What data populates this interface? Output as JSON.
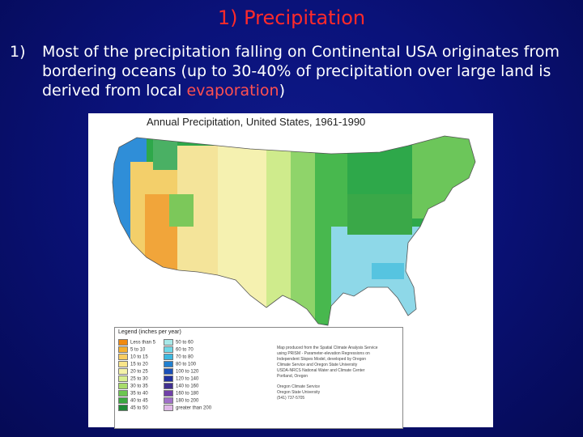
{
  "slide": {
    "title": "1) Precipitation",
    "bullet_number": "1)",
    "bullet_text_main": "Most of the precipitation falling on Continental USA originates from bordering oceans (up to 30-40% of precipitation over large land is derived from local ",
    "bullet_text_highlight": "evaporation",
    "bullet_text_end": ")"
  },
  "map": {
    "title": "Annual Precipitation, United States, 1961-1990",
    "legend_title": "Legend (inches per year)",
    "legend_left": [
      {
        "label": "Less than 5",
        "color": "#f08a10"
      },
      {
        "label": "5 to 10",
        "color": "#f5b030"
      },
      {
        "label": "10 to 15",
        "color": "#f7cc60"
      },
      {
        "label": "15 to 20",
        "color": "#f9e58a"
      },
      {
        "label": "20 to 25",
        "color": "#f4f2a8"
      },
      {
        "label": "25 to 30",
        "color": "#d7ee90"
      },
      {
        "label": "30 to 35",
        "color": "#a8dc6a"
      },
      {
        "label": "35 to 40",
        "color": "#6cc650"
      },
      {
        "label": "40 to 45",
        "color": "#3aa840"
      },
      {
        "label": "45 to 50",
        "color": "#1f8a36"
      }
    ],
    "legend_right": [
      {
        "label": "50 to 60",
        "color": "#a8e8e8"
      },
      {
        "label": "60 to 70",
        "color": "#70d8e8"
      },
      {
        "label": "70 to 80",
        "color": "#3cb8e0"
      },
      {
        "label": "80 to 100",
        "color": "#2080d0"
      },
      {
        "label": "100 to 120",
        "color": "#1a50b8"
      },
      {
        "label": "120 to 140",
        "color": "#2030a0"
      },
      {
        "label": "140 to 160",
        "color": "#403090"
      },
      {
        "label": "160 to 180",
        "color": "#7040a8"
      },
      {
        "label": "180 to 200",
        "color": "#a070c8"
      },
      {
        "label": "greater than 200",
        "color": "#e0b8e8"
      }
    ],
    "credits": [
      "Map produced from the Spatial Climate Analysis Service",
      "using PRISM - Parameter-elevation Regressions on",
      "Independent Slopes Model, developed by Oregon",
      "Climate Service and Oregon State University",
      "USDA-NRCS National Water and Climate Center",
      "Portland, Oregon",
      "",
      "Oregon Climate Service",
      "Oregon State University",
      "(541) 737-5705"
    ]
  }
}
